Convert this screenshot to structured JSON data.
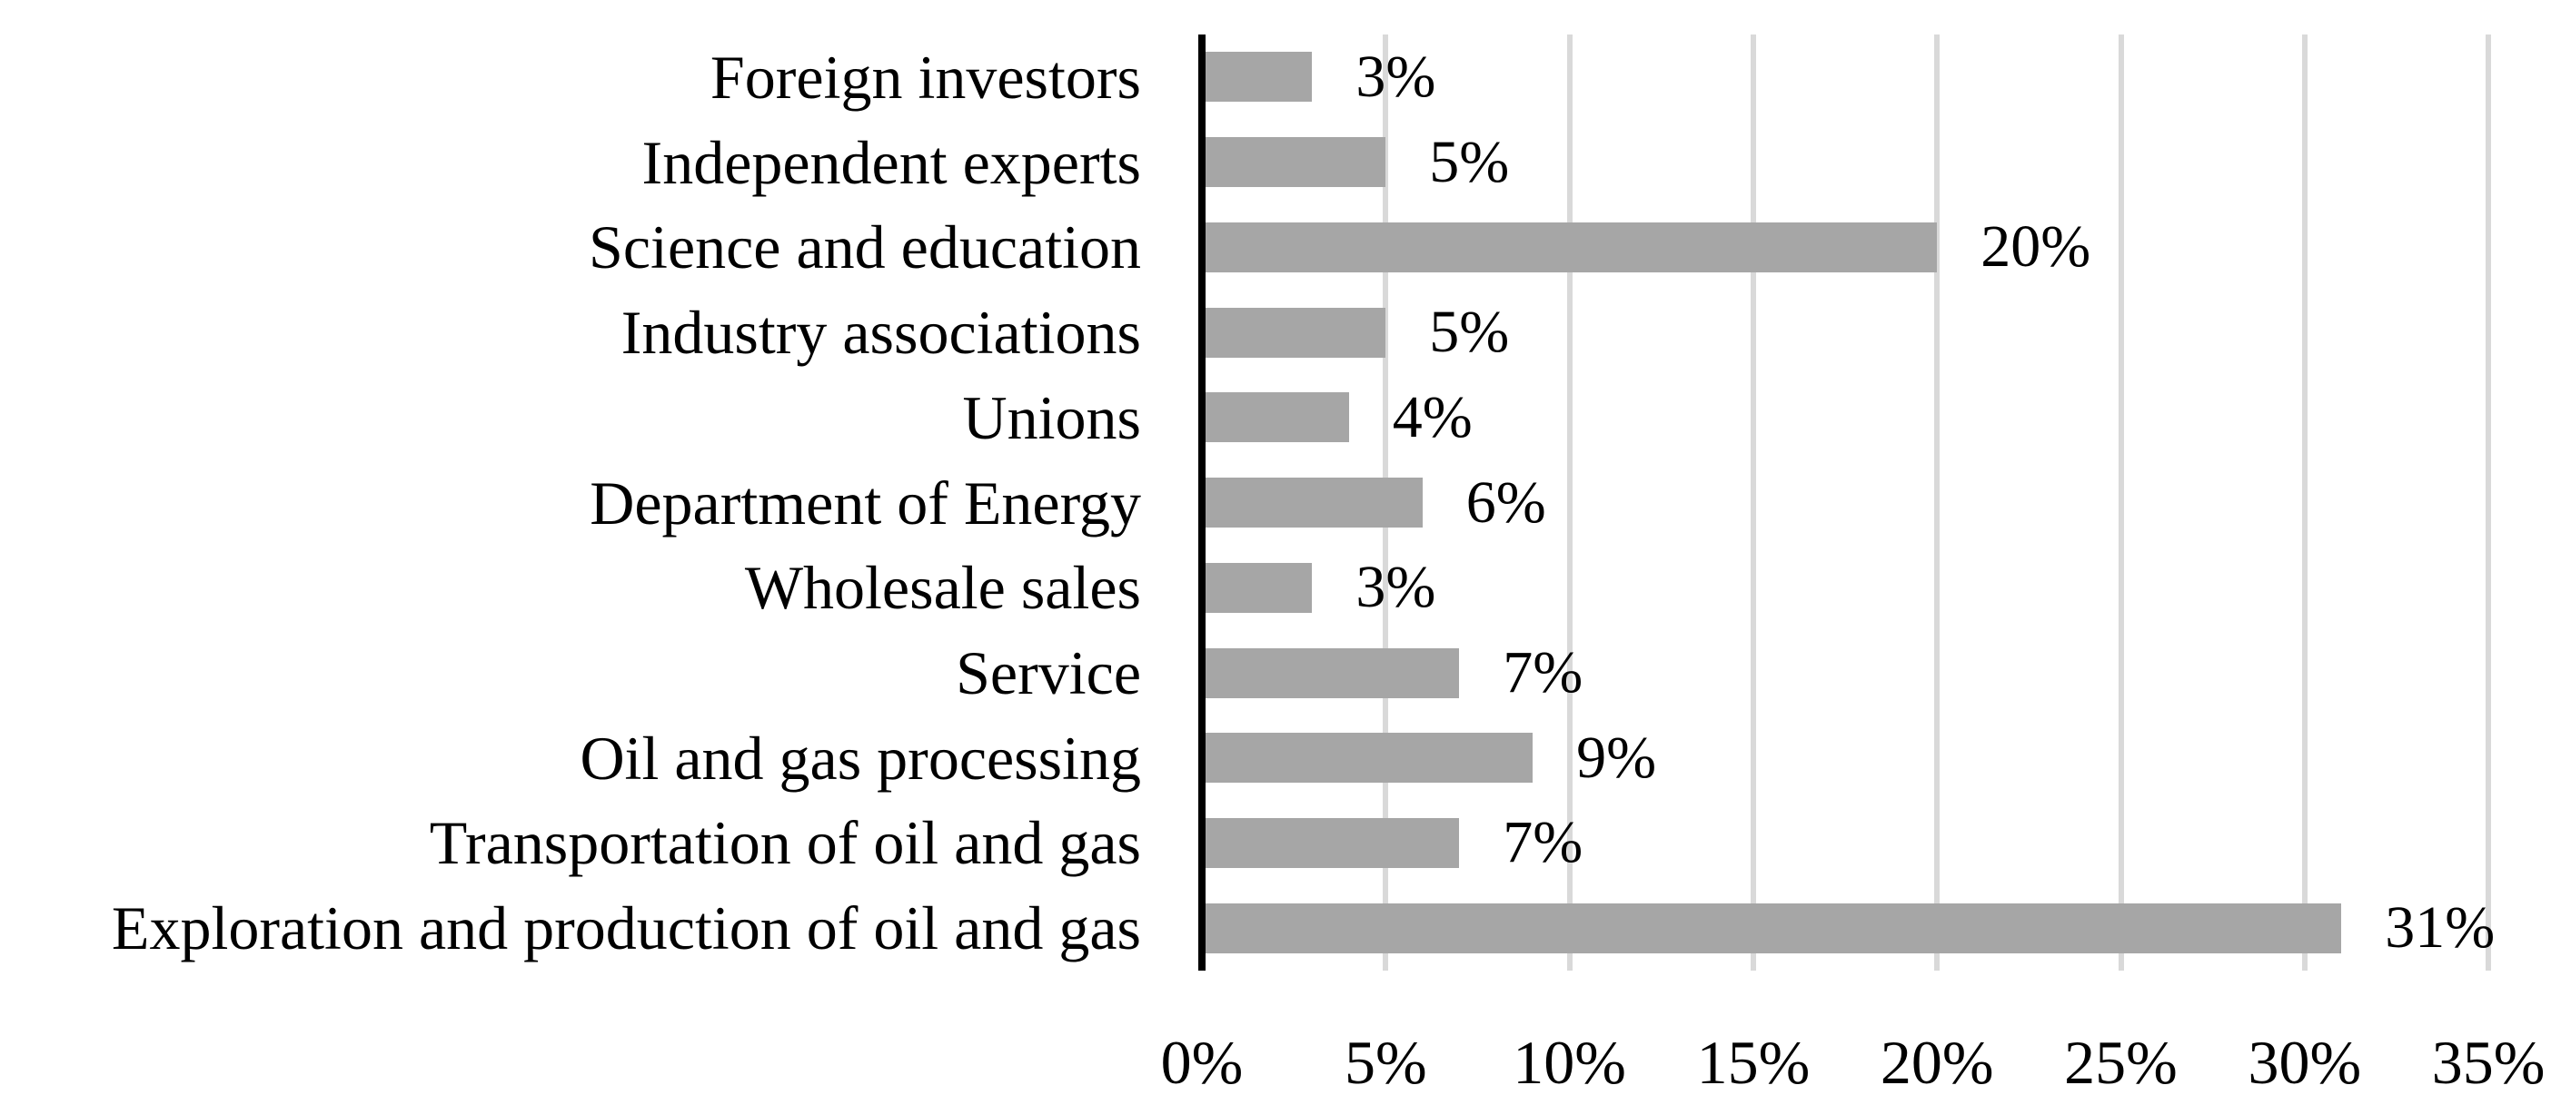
{
  "chart_data": {
    "type": "bar",
    "orientation": "horizontal",
    "title": "",
    "xlabel": "",
    "ylabel": "",
    "categories": [
      "Foreign investors",
      "Independent experts",
      "Science and education",
      "Industry associations",
      "Unions",
      "Department of Energy",
      "Wholesale sales",
      "Service",
      "Oil and gas processing",
      "Transportation of oil and gas",
      "Exploration and production of oil and gas"
    ],
    "values": [
      3,
      5,
      20,
      5,
      4,
      6,
      3,
      7,
      9,
      7,
      31
    ],
    "data_labels": [
      "3%",
      "5%",
      "20%",
      "5%",
      "4%",
      "6%",
      "3%",
      "7%",
      "9%",
      "7%",
      "31%"
    ],
    "x_ticks": [
      0,
      5,
      10,
      15,
      20,
      25,
      30,
      35
    ],
    "x_tick_labels": [
      "0%",
      "5%",
      "10%",
      "15%",
      "20%",
      "25%",
      "30%",
      "35%"
    ],
    "xlim": [
      0,
      35
    ],
    "grid": "vertical-gridlines-on",
    "legend": "none",
    "colors": {
      "bar": "#a6a6a6",
      "gridline": "#d9d9d9",
      "axis_line": "#000000",
      "text": "#000000",
      "background": "#ffffff"
    }
  }
}
